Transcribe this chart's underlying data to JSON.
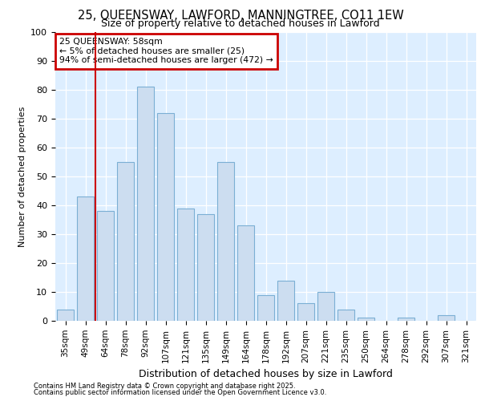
{
  "title_line1": "25, QUEENSWAY, LAWFORD, MANNINGTREE, CO11 1EW",
  "title_line2": "Size of property relative to detached houses in Lawford",
  "xlabel": "Distribution of detached houses by size in Lawford",
  "ylabel": "Number of detached properties",
  "categories": [
    "35sqm",
    "49sqm",
    "64sqm",
    "78sqm",
    "92sqm",
    "107sqm",
    "121sqm",
    "135sqm",
    "149sqm",
    "164sqm",
    "178sqm",
    "192sqm",
    "207sqm",
    "221sqm",
    "235sqm",
    "250sqm",
    "264sqm",
    "278sqm",
    "292sqm",
    "307sqm",
    "321sqm"
  ],
  "values": [
    4,
    43,
    38,
    55,
    81,
    72,
    39,
    37,
    55,
    33,
    9,
    14,
    6,
    10,
    4,
    1,
    0,
    1,
    0,
    2,
    0
  ],
  "bar_color": "#ccddf0",
  "bar_edge_color": "#7bafd4",
  "background_color": "#ffffff",
  "plot_bg_color": "#ddeeff",
  "grid_color": "#ffffff",
  "vline_x": 1.5,
  "vline_color": "#cc0000",
  "annotation_text": "25 QUEENSWAY: 58sqm\n← 5% of detached houses are smaller (25)\n94% of semi-detached houses are larger (472) →",
  "annotation_box_color": "#ffffff",
  "annotation_box_edge_color": "#cc0000",
  "ylim": [
    0,
    100
  ],
  "yticks": [
    0,
    10,
    20,
    30,
    40,
    50,
    60,
    70,
    80,
    90,
    100
  ],
  "footnote1": "Contains HM Land Registry data © Crown copyright and database right 2025.",
  "footnote2": "Contains public sector information licensed under the Open Government Licence v3.0."
}
